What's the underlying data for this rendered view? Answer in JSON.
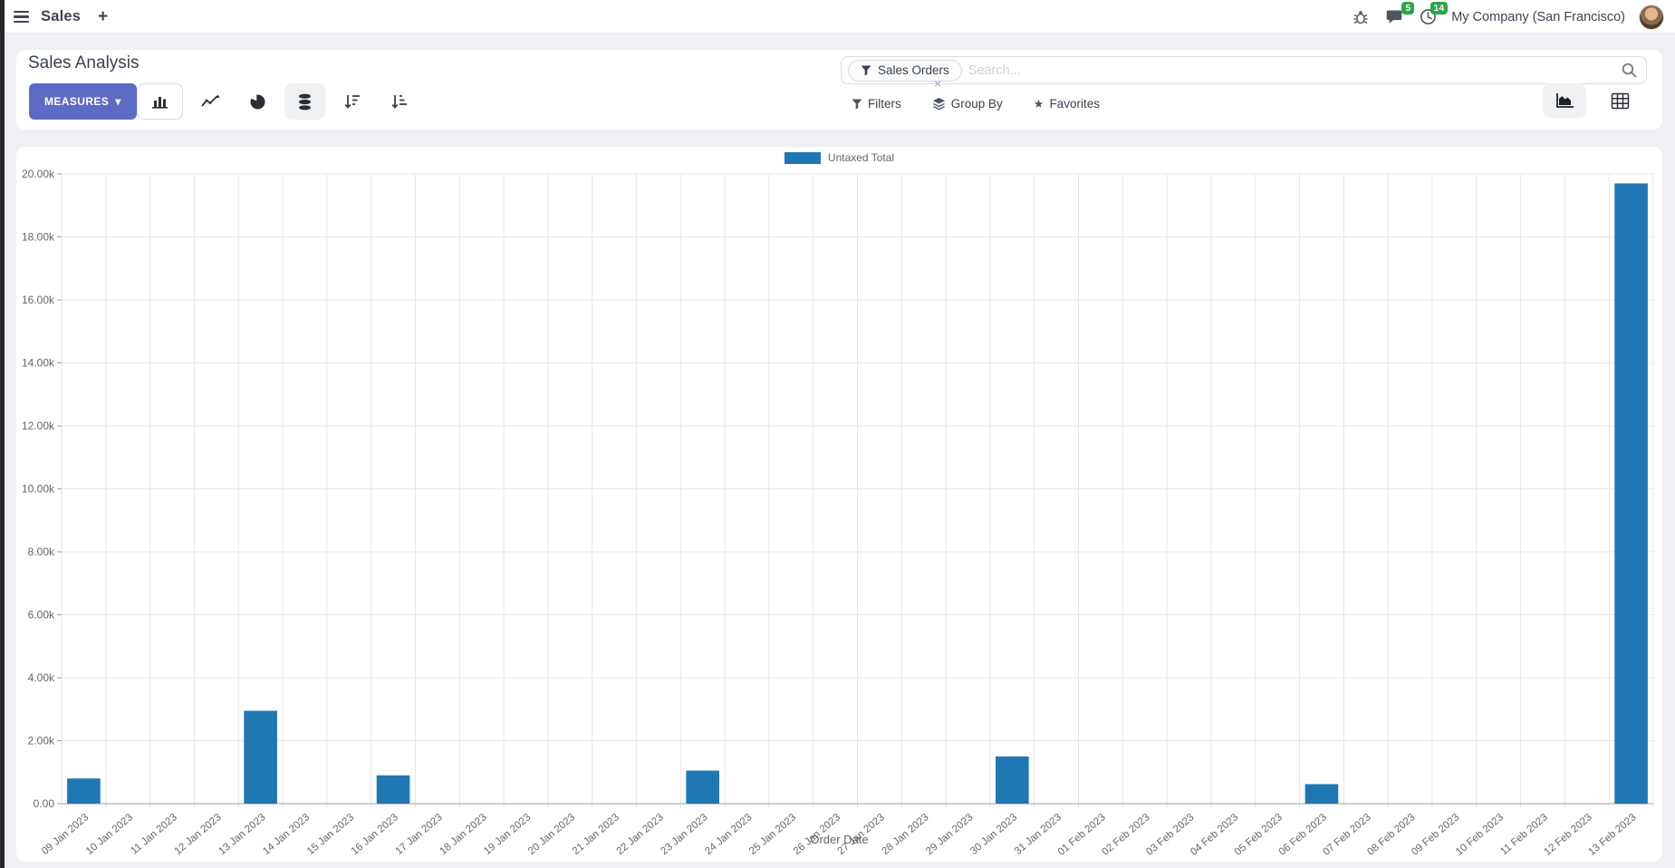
{
  "navbar": {
    "app_name": "Sales",
    "company_name": "My Company (San Francisco)",
    "message_badge": "5",
    "activity_badge": "14"
  },
  "icons": {
    "plus": "+",
    "caret_down": "▾",
    "star": "★",
    "close_facet": "×"
  },
  "colors": {
    "accent": "#5d6bc4",
    "bar": "#1f77b4",
    "badge": "#28a745"
  },
  "control_panel": {
    "title": "Sales Analysis",
    "measures_label": "MEASURES",
    "search": {
      "facet_label": "Sales Orders",
      "placeholder": "Search..."
    },
    "filters_label": "Filters",
    "group_by_label": "Group By",
    "favorites_label": "Favorites"
  },
  "chart_data": {
    "type": "bar",
    "title": "",
    "xlabel": "Order Date",
    "ylabel": "",
    "legend_position": "top",
    "grid": true,
    "ylim": [
      0,
      20000
    ],
    "y_tick_labels": [
      "0.00",
      "2.00k",
      "4.00k",
      "6.00k",
      "8.00k",
      "10.00k",
      "12.00k",
      "14.00k",
      "16.00k",
      "18.00k",
      "20.00k"
    ],
    "categories": [
      "09 Jan 2023",
      "10 Jan 2023",
      "11 Jan 2023",
      "12 Jan 2023",
      "13 Jan 2023",
      "14 Jan 2023",
      "15 Jan 2023",
      "16 Jan 2023",
      "17 Jan 2023",
      "18 Jan 2023",
      "19 Jan 2023",
      "20 Jan 2023",
      "21 Jan 2023",
      "22 Jan 2023",
      "23 Jan 2023",
      "24 Jan 2023",
      "25 Jan 2023",
      "26 Jan 2023",
      "27 Jan 2023",
      "28 Jan 2023",
      "29 Jan 2023",
      "30 Jan 2023",
      "31 Jan 2023",
      "01 Feb 2023",
      "02 Feb 2023",
      "03 Feb 2023",
      "04 Feb 2023",
      "05 Feb 2023",
      "06 Feb 2023",
      "07 Feb 2023",
      "08 Feb 2023",
      "09 Feb 2023",
      "10 Feb 2023",
      "11 Feb 2023",
      "12 Feb 2023",
      "13 Feb 2023"
    ],
    "series": [
      {
        "name": "Untaxed Total",
        "color": "#1f77b4",
        "values": [
          800,
          0,
          0,
          0,
          2950,
          0,
          0,
          900,
          0,
          0,
          0,
          0,
          0,
          0,
          1050,
          0,
          0,
          0,
          0,
          0,
          0,
          1500,
          0,
          0,
          0,
          0,
          0,
          0,
          620,
          0,
          0,
          0,
          0,
          0,
          0,
          19700
        ]
      }
    ]
  }
}
